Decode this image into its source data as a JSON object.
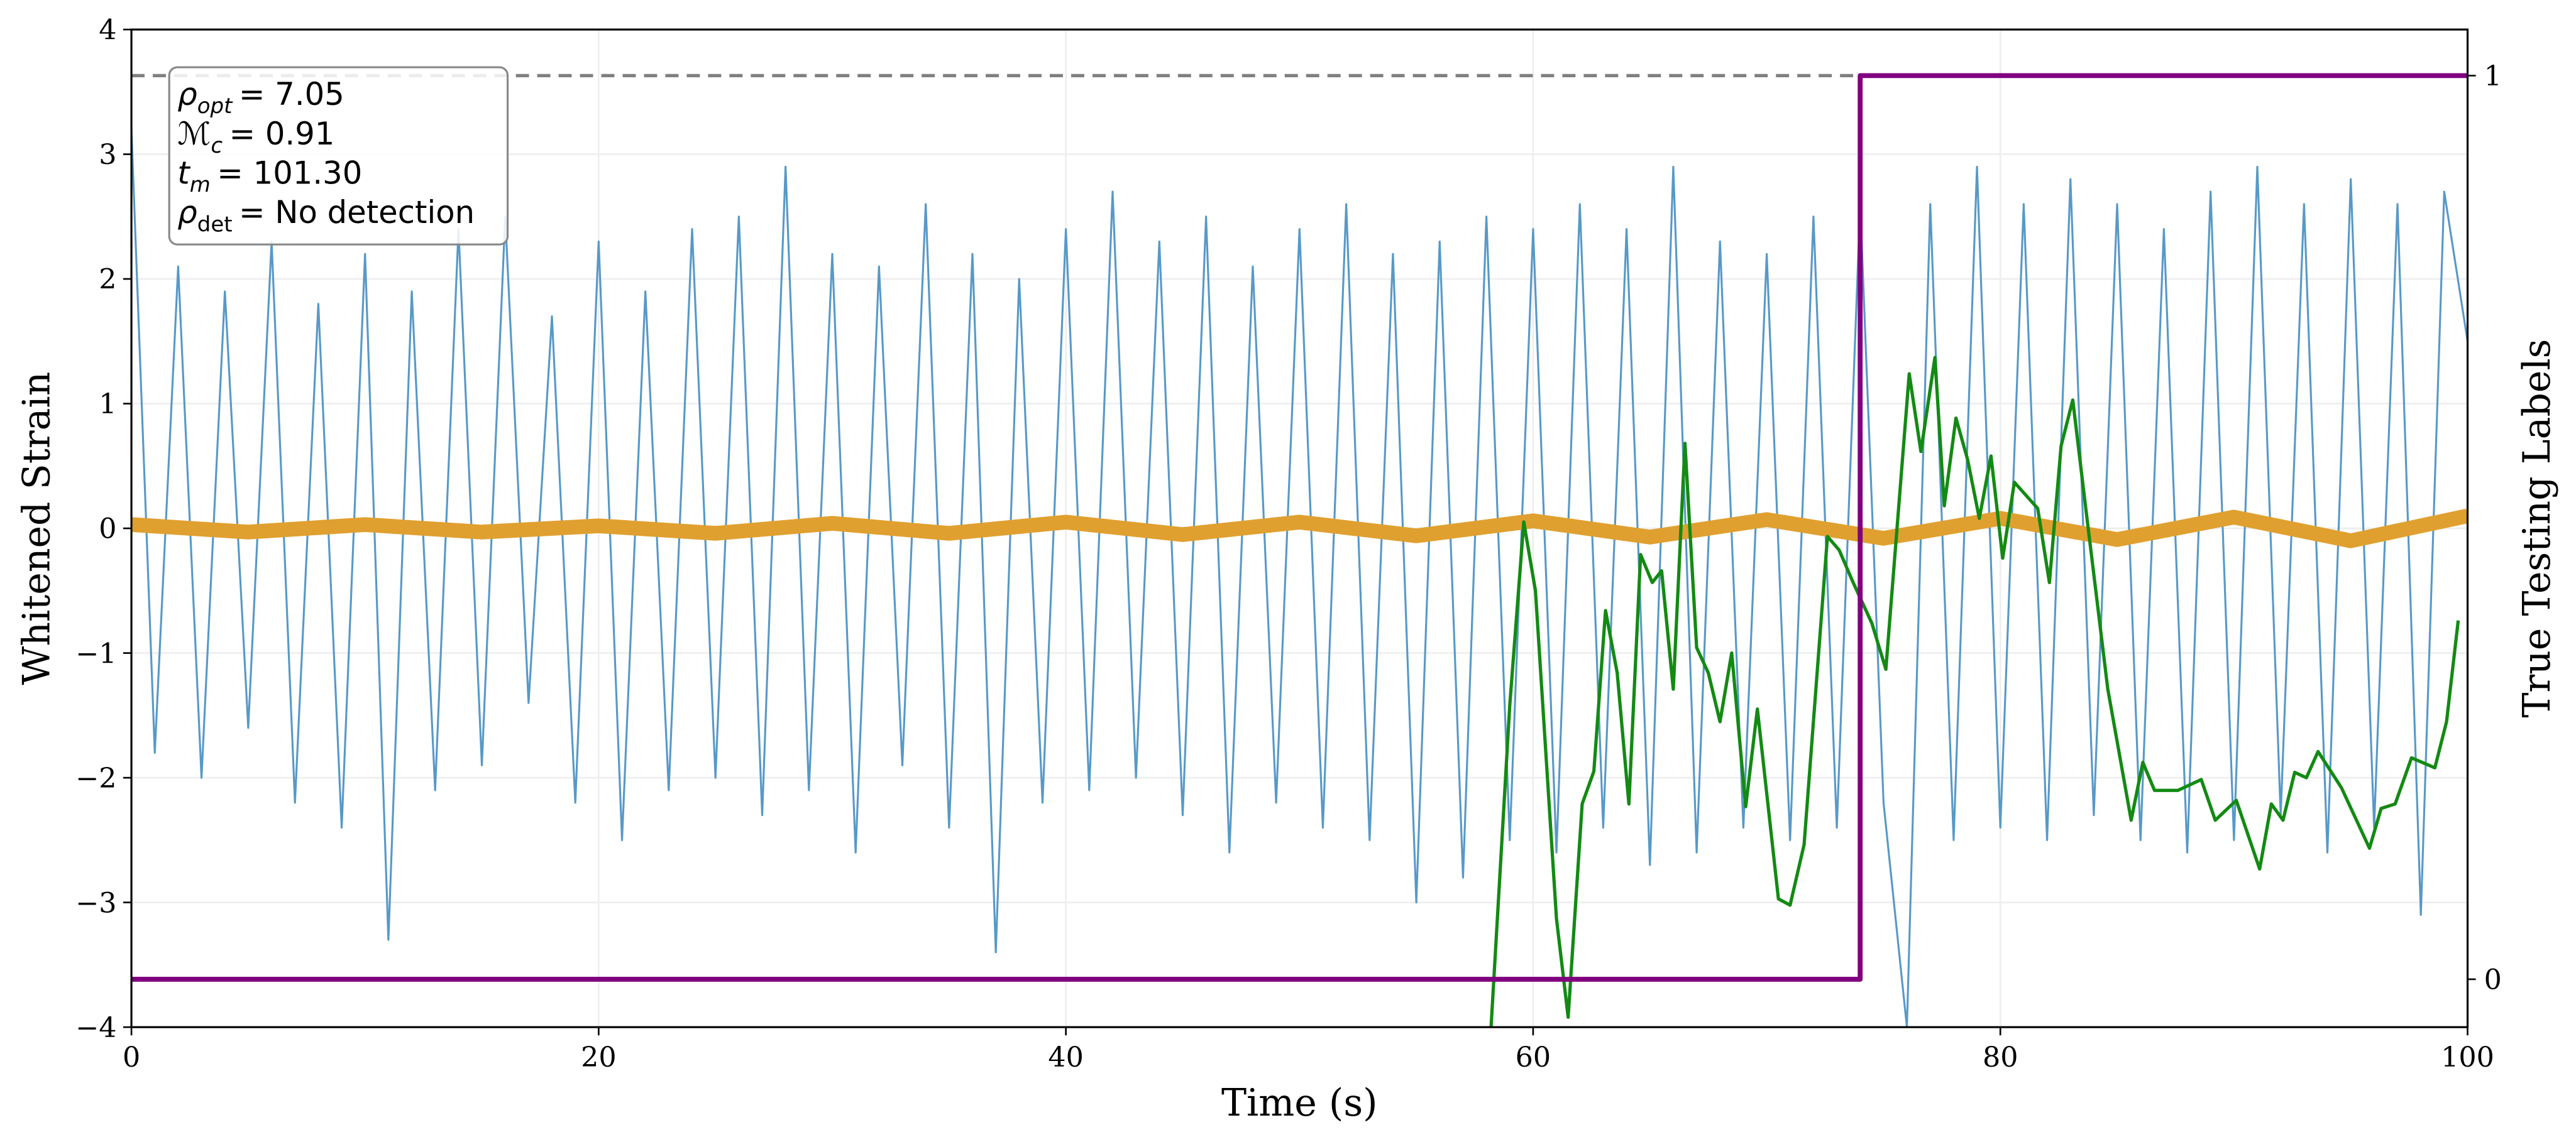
{
  "chart_data": {
    "type": "line",
    "xlabel": "Time (s)",
    "ylabel": "Whitened Strain",
    "y2label": "True Testing Labels",
    "xlim": [
      0,
      100
    ],
    "xticks": [
      0,
      20,
      40,
      60,
      80,
      100
    ],
    "ylim": [
      -4,
      4
    ],
    "yticks": [
      {
        "value": -4,
        "label": "−4"
      },
      {
        "value": -3,
        "label": "−3"
      },
      {
        "value": -2,
        "label": "−2"
      },
      {
        "value": -1,
        "label": "−1"
      },
      0,
      1,
      2,
      3,
      4
    ],
    "y2lim": [
      -0.053,
      1.051
    ],
    "y2ticks": [
      0,
      1
    ],
    "grid": true,
    "hline": {
      "value": 1,
      "axis": "y2",
      "color": "#808080"
    },
    "annotation": [
      {
        "symbol": "ρ",
        "subscript": "opt",
        "text": "= 7.05"
      },
      {
        "symbol": "ℳ",
        "subscript": "c",
        "text": "= 0.91"
      },
      {
        "symbol": "t",
        "subscript": "m",
        "text": "= 101.30"
      },
      {
        "symbol": "ρ",
        "subscript": "det",
        "text": "= No detection"
      }
    ],
    "series": [
      {
        "color": "#5799c7",
        "width": 1.2,
        "x": [
          0,
          1,
          2,
          3,
          4,
          5,
          6,
          7,
          8,
          9,
          10,
          11,
          12,
          13,
          14,
          15,
          16,
          17,
          18,
          19,
          20,
          21,
          22,
          23,
          24,
          25,
          26,
          27,
          28,
          29,
          30,
          31,
          32,
          33,
          34,
          35,
          36,
          37,
          38,
          39,
          40,
          41,
          42,
          43,
          44,
          45,
          46,
          47,
          48,
          49,
          50,
          51,
          52,
          53,
          54,
          55,
          56,
          57,
          58,
          59,
          60,
          61,
          62,
          63,
          64,
          65,
          66,
          67,
          68,
          69,
          70,
          71,
          72,
          73,
          74,
          75,
          76,
          77,
          78,
          79,
          80,
          81,
          82,
          83,
          84,
          85,
          86,
          87,
          88,
          89,
          90,
          91,
          92,
          93,
          94,
          95,
          96,
          97,
          98,
          99,
          100
        ],
        "values": [
          3.2,
          -1.8,
          2.1,
          -2.0,
          1.9,
          -1.6,
          2.3,
          -2.2,
          1.8,
          -2.4,
          2.2,
          -3.3,
          1.9,
          -2.1,
          2.4,
          -1.9,
          2.5,
          -1.4,
          1.7,
          -2.2,
          2.3,
          -2.5,
          1.9,
          -2.1,
          2.4,
          -2.0,
          2.5,
          -2.3,
          2.9,
          -2.1,
          2.2,
          -2.6,
          2.1,
          -1.9,
          2.6,
          -2.4,
          2.2,
          -3.4,
          2.0,
          -2.2,
          2.4,
          -2.1,
          2.7,
          -2.0,
          2.3,
          -2.3,
          2.5,
          -2.6,
          2.1,
          -2.2,
          2.4,
          -2.4,
          2.6,
          -2.5,
          2.2,
          -3.0,
          2.3,
          -2.8,
          2.5,
          -2.5,
          2.4,
          -2.6,
          2.6,
          -2.4,
          2.4,
          -2.7,
          2.9,
          -2.6,
          2.3,
          -2.4,
          2.2,
          -2.5,
          2.5,
          -2.4,
          2.6,
          -2.2,
          -4.0,
          2.6,
          -2.5,
          2.9,
          -2.4,
          2.6,
          -2.5,
          2.8,
          -2.3,
          2.6,
          -2.5,
          2.4,
          -2.6,
          2.7,
          -2.5,
          2.9,
          -2.3,
          2.6,
          -2.6,
          2.8,
          -2.4,
          2.6,
          -3.1,
          2.7,
          1.5
        ]
      },
      {
        "color": "#e0a030",
        "width": 9,
        "x": [
          0,
          5,
          10,
          15,
          20,
          25,
          30,
          35,
          40,
          45,
          50,
          55,
          60,
          65,
          70,
          75,
          80,
          85,
          90,
          95,
          100
        ],
        "values": [
          0.03,
          -0.03,
          0.03,
          -0.03,
          0.02,
          -0.04,
          0.04,
          -0.04,
          0.05,
          -0.05,
          0.05,
          -0.06,
          0.06,
          -0.07,
          0.07,
          -0.08,
          0.08,
          -0.09,
          0.09,
          -0.1,
          0.1
        ]
      },
      {
        "color": "#138a13",
        "width": 2,
        "axis": "y2",
        "x": [
          58.2,
          59.0,
          59.6,
          60.1,
          61.0,
          61.5,
          62.1,
          62.6,
          63.1,
          63.6,
          64.1,
          64.6,
          65.1,
          65.5,
          66.0,
          66.5,
          67.0,
          67.5,
          68.0,
          68.5,
          69.1,
          69.6,
          70.5,
          71.0,
          71.6,
          72.6,
          73.1,
          73.7,
          74.5,
          75.1,
          76.1,
          76.6,
          77.2,
          77.6,
          78.1,
          78.6,
          79.1,
          79.6,
          80.1,
          80.6,
          81.6,
          82.1,
          82.6,
          83.1,
          83.7,
          84.6,
          85.6,
          86.1,
          86.6,
          87.6,
          88.6,
          89.2,
          90.1,
          91.1,
          91.6,
          92.1,
          92.6,
          93.1,
          93.6,
          94.6,
          95.8,
          96.3,
          96.9,
          97.6,
          98.6,
          99.1,
          99.6
        ],
        "values": [
          -0.053,
          0.303,
          0.506,
          0.43,
          0.067,
          -0.042,
          0.194,
          0.23,
          0.408,
          0.339,
          0.194,
          0.47,
          0.439,
          0.452,
          0.321,
          0.593,
          0.367,
          0.339,
          0.285,
          0.361,
          0.191,
          0.299,
          0.089,
          0.082,
          0.149,
          0.49,
          0.475,
          0.439,
          0.394,
          0.343,
          0.67,
          0.584,
          0.688,
          0.524,
          0.621,
          0.575,
          0.51,
          0.579,
          0.466,
          0.55,
          0.521,
          0.439,
          0.59,
          0.641,
          0.512,
          0.321,
          0.176,
          0.24,
          0.209,
          0.209,
          0.221,
          0.176,
          0.198,
          0.122,
          0.194,
          0.176,
          0.229,
          0.223,
          0.252,
          0.212,
          0.145,
          0.189,
          0.194,
          0.245,
          0.234,
          0.285,
          0.397
        ]
      },
      {
        "color": "#800080",
        "width": 3,
        "axis": "y2",
        "x": [
          0,
          74,
          74,
          100
        ],
        "values": [
          0,
          0,
          1,
          1
        ]
      }
    ]
  }
}
